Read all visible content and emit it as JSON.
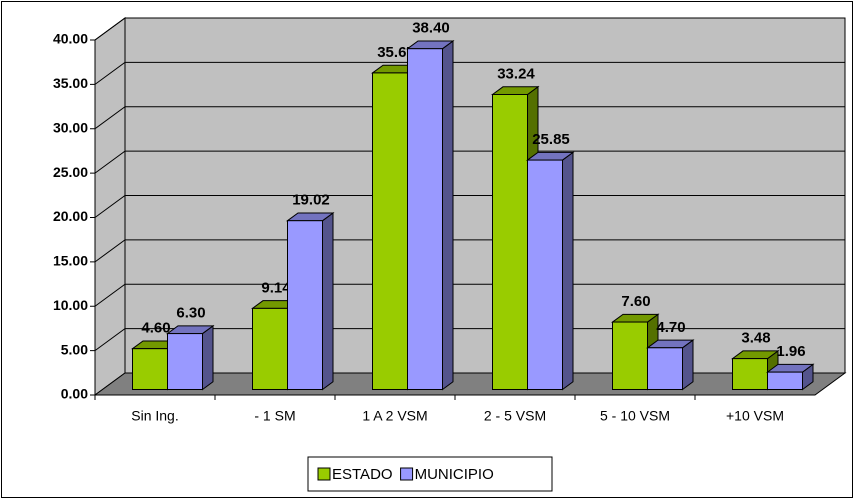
{
  "chart_data": {
    "type": "bar3d",
    "categories": [
      "Sin Ing.",
      "- 1 SM",
      "1 A 2 VSM",
      "2 - 5 VSM",
      "5 - 10 VSM",
      "+10 VSM"
    ],
    "series": [
      {
        "name": "ESTADO",
        "color": "#99cc00",
        "values": [
          4.6,
          9.14,
          35.67,
          33.24,
          7.6,
          3.48
        ],
        "value_labels": [
          "4.60",
          "9.14",
          "35.67",
          "33.24",
          "7.60",
          "3.48"
        ]
      },
      {
        "name": "MUNICIPIO",
        "color": "#9999ff",
        "values": [
          6.3,
          19.02,
          38.4,
          25.85,
          4.7,
          1.96
        ],
        "value_labels": [
          "6.30",
          "19.02",
          "38.40",
          "25.85",
          "4.70",
          "1.96"
        ]
      }
    ],
    "ylim": [
      0,
      40
    ],
    "yticks": [
      {
        "value": 0,
        "label": "0.00"
      },
      {
        "value": 5,
        "label": "5.00"
      },
      {
        "value": 10,
        "label": "10.00"
      },
      {
        "value": 15,
        "label": "15.00"
      },
      {
        "value": 20,
        "label": "20.00"
      },
      {
        "value": 25,
        "label": "25.00"
      },
      {
        "value": 30,
        "label": "30.00"
      },
      {
        "value": 35,
        "label": "35.00"
      },
      {
        "value": 40,
        "label": "40.00"
      }
    ],
    "grid": true,
    "legend": "bottom"
  }
}
